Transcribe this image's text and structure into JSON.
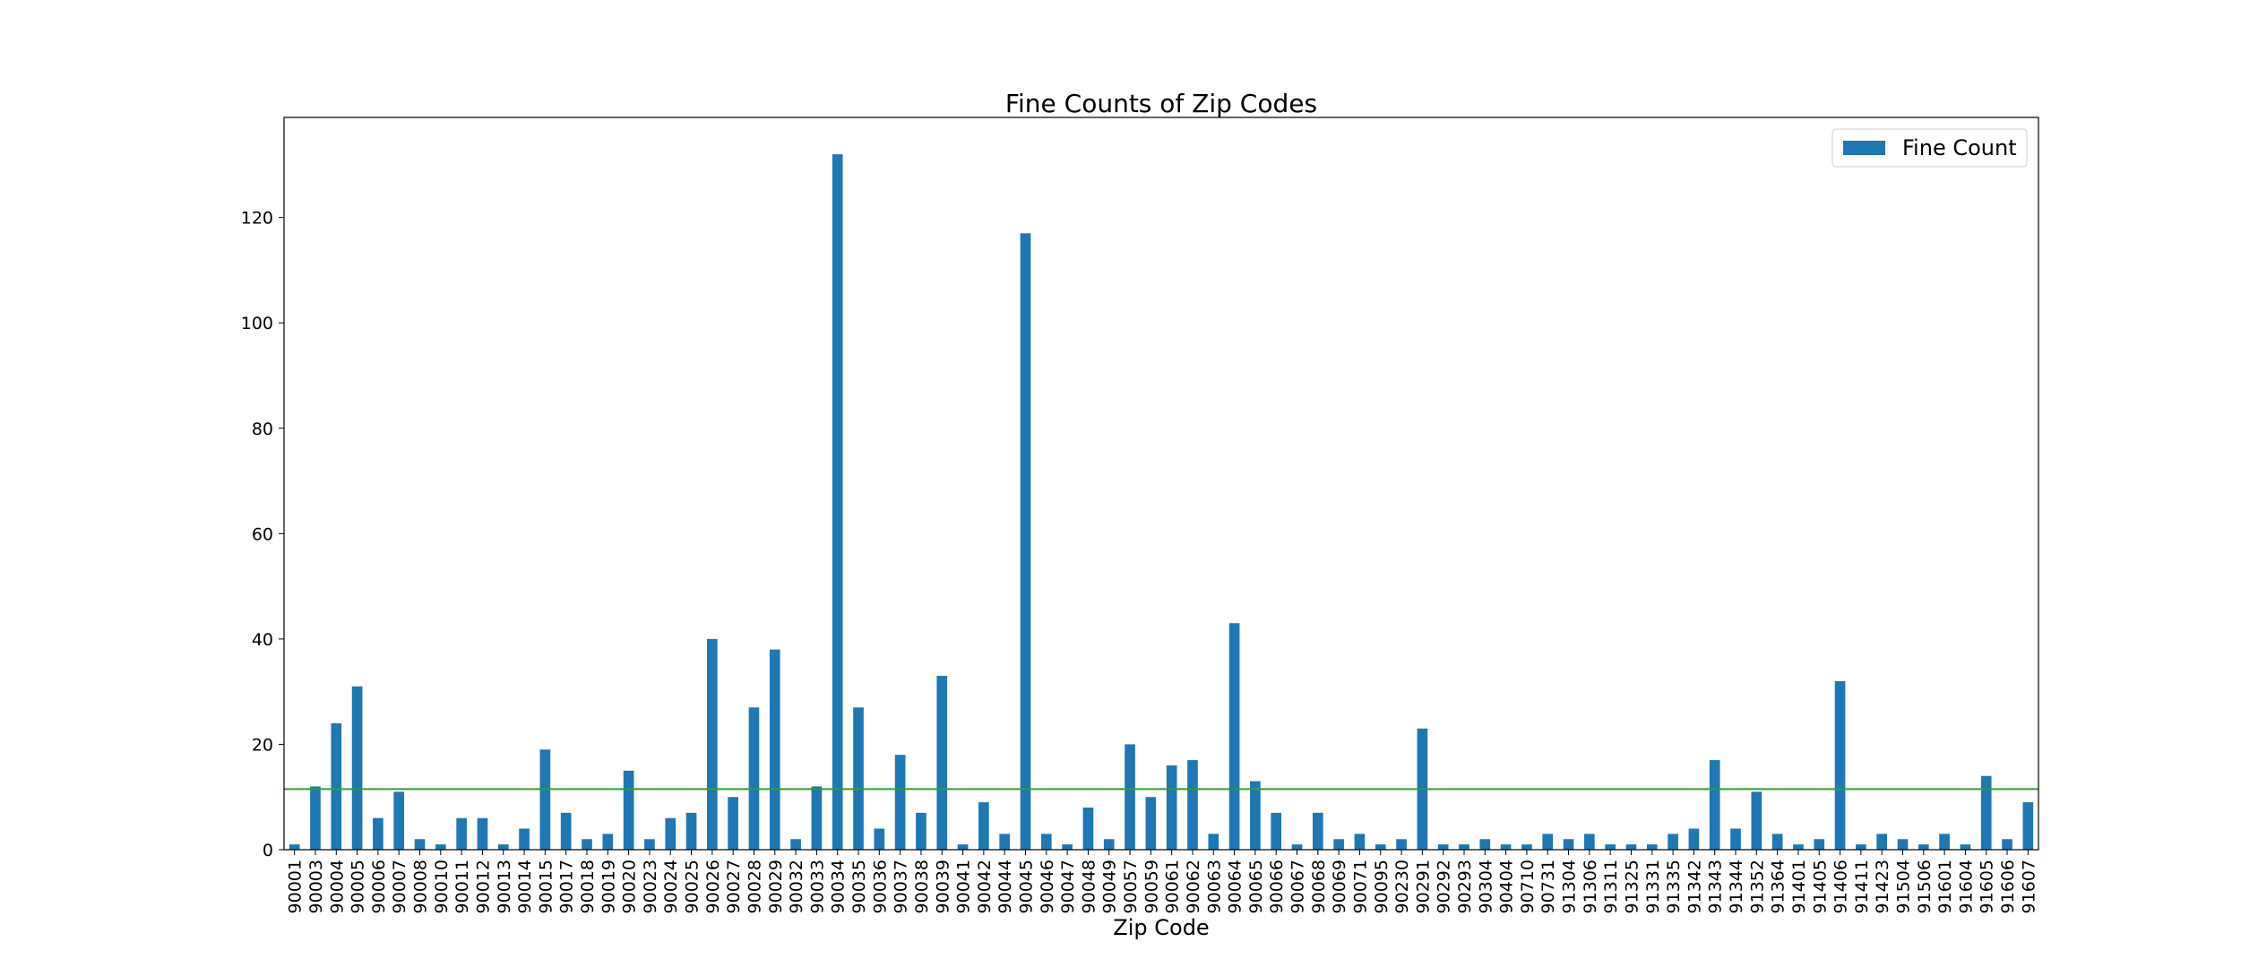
{
  "chart_data": {
    "type": "bar",
    "title": "Fine Counts of Zip Codes",
    "xlabel": "Zip Code",
    "ylabel": "",
    "ylim": [
      0,
      139
    ],
    "yticks": [
      0,
      20,
      40,
      60,
      80,
      100,
      120
    ],
    "legend": {
      "position": "top-right",
      "entries": [
        "Fine Count"
      ]
    },
    "grid": false,
    "bar_color": "#1f77b4",
    "reference_line": {
      "value": 11.5,
      "color": "#2ca02c"
    },
    "categories": [
      "90001",
      "90003",
      "90004",
      "90005",
      "90006",
      "90007",
      "90008",
      "90010",
      "90011",
      "90012",
      "90013",
      "90014",
      "90015",
      "90017",
      "90018",
      "90019",
      "90020",
      "90023",
      "90024",
      "90025",
      "90026",
      "90027",
      "90028",
      "90029",
      "90032",
      "90033",
      "90034",
      "90035",
      "90036",
      "90037",
      "90038",
      "90039",
      "90041",
      "90042",
      "90044",
      "90045",
      "90046",
      "90047",
      "90048",
      "90049",
      "90057",
      "90059",
      "90061",
      "90062",
      "90063",
      "90064",
      "90065",
      "90066",
      "90067",
      "90068",
      "90069",
      "90071",
      "90095",
      "90230",
      "90291",
      "90292",
      "90293",
      "90304",
      "90404",
      "90710",
      "90731",
      "91304",
      "91306",
      "91311",
      "91325",
      "91331",
      "91335",
      "91342",
      "91343",
      "91344",
      "91352",
      "91364",
      "91401",
      "91405",
      "91406",
      "91411",
      "91423",
      "91504",
      "91506",
      "91601",
      "91604",
      "91605",
      "91606",
      "91607"
    ],
    "series": [
      {
        "name": "Fine Count",
        "values": [
          1,
          12,
          24,
          31,
          6,
          11,
          2,
          1,
          6,
          6,
          1,
          4,
          19,
          7,
          2,
          3,
          15,
          2,
          6,
          7,
          40,
          10,
          27,
          38,
          2,
          12,
          132,
          27,
          4,
          18,
          7,
          33,
          1,
          9,
          3,
          117,
          3,
          1,
          8,
          2,
          20,
          10,
          16,
          17,
          3,
          43,
          13,
          7,
          1,
          7,
          2,
          3,
          1,
          2,
          23,
          1,
          1,
          2,
          1,
          1,
          3,
          2,
          3,
          1,
          1,
          1,
          3,
          4,
          17,
          4,
          11,
          3,
          1,
          2,
          32,
          1,
          3,
          2,
          1,
          3,
          1,
          14,
          2,
          9
        ]
      }
    ]
  }
}
